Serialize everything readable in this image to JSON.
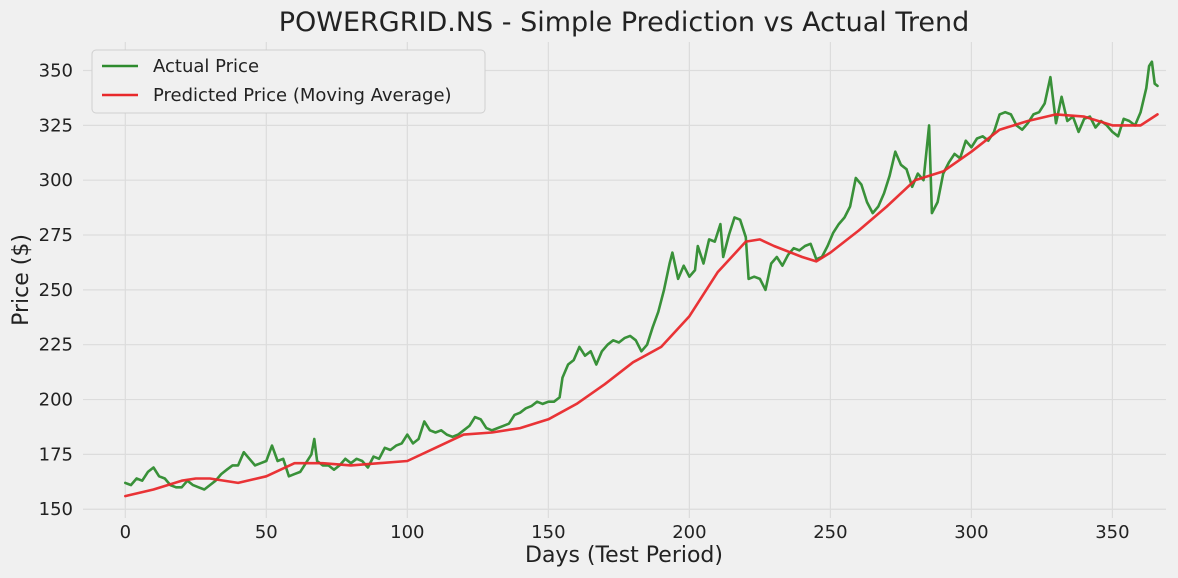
{
  "chart_data": {
    "type": "line",
    "title": "POWERGRID.NS - Simple Prediction vs Actual Trend",
    "xlabel": "Days (Test Period)",
    "ylabel": "Price ($)",
    "xlim": [
      -15,
      369
    ],
    "ylim": [
      146,
      363
    ],
    "xticks": [
      0,
      50,
      100,
      150,
      200,
      250,
      300,
      350
    ],
    "yticks": [
      150,
      175,
      200,
      225,
      250,
      275,
      300,
      325,
      350
    ],
    "grid": true,
    "legend_position": "top-left",
    "series": [
      {
        "name": "Actual Price",
        "color": "#2e8b2e",
        "points": [
          [
            0,
            162
          ],
          [
            2,
            161
          ],
          [
            4,
            164
          ],
          [
            6,
            163
          ],
          [
            8,
            167
          ],
          [
            10,
            169
          ],
          [
            12,
            165
          ],
          [
            14,
            164
          ],
          [
            16,
            161
          ],
          [
            18,
            160
          ],
          [
            20,
            160
          ],
          [
            22,
            163
          ],
          [
            24,
            161
          ],
          [
            26,
            160
          ],
          [
            28,
            159
          ],
          [
            30,
            161
          ],
          [
            32,
            163
          ],
          [
            34,
            166
          ],
          [
            36,
            168
          ],
          [
            38,
            170
          ],
          [
            40,
            170
          ],
          [
            42,
            176
          ],
          [
            44,
            173
          ],
          [
            46,
            170
          ],
          [
            48,
            171
          ],
          [
            50,
            172
          ],
          [
            52,
            179
          ],
          [
            54,
            172
          ],
          [
            56,
            173
          ],
          [
            58,
            165
          ],
          [
            60,
            166
          ],
          [
            62,
            167
          ],
          [
            64,
            171
          ],
          [
            66,
            175
          ],
          [
            67,
            182
          ],
          [
            68,
            172
          ],
          [
            70,
            170
          ],
          [
            72,
            170
          ],
          [
            74,
            168
          ],
          [
            76,
            170
          ],
          [
            78,
            173
          ],
          [
            80,
            171
          ],
          [
            82,
            173
          ],
          [
            84,
            172
          ],
          [
            86,
            169
          ],
          [
            88,
            174
          ],
          [
            90,
            173
          ],
          [
            92,
            178
          ],
          [
            94,
            177
          ],
          [
            96,
            179
          ],
          [
            98,
            180
          ],
          [
            100,
            184
          ],
          [
            102,
            180
          ],
          [
            104,
            182
          ],
          [
            106,
            190
          ],
          [
            108,
            186
          ],
          [
            110,
            185
          ],
          [
            112,
            186
          ],
          [
            114,
            184
          ],
          [
            116,
            183
          ],
          [
            118,
            184
          ],
          [
            120,
            186
          ],
          [
            122,
            188
          ],
          [
            124,
            192
          ],
          [
            126,
            191
          ],
          [
            128,
            187
          ],
          [
            130,
            186
          ],
          [
            132,
            187
          ],
          [
            134,
            188
          ],
          [
            136,
            189
          ],
          [
            138,
            193
          ],
          [
            140,
            194
          ],
          [
            142,
            196
          ],
          [
            144,
            197
          ],
          [
            146,
            199
          ],
          [
            148,
            198
          ],
          [
            150,
            199
          ],
          [
            152,
            199
          ],
          [
            154,
            201
          ],
          [
            155,
            210
          ],
          [
            157,
            216
          ],
          [
            159,
            218
          ],
          [
            161,
            224
          ],
          [
            163,
            220
          ],
          [
            165,
            222
          ],
          [
            167,
            216
          ],
          [
            169,
            222
          ],
          [
            171,
            225
          ],
          [
            173,
            227
          ],
          [
            175,
            226
          ],
          [
            177,
            228
          ],
          [
            179,
            229
          ],
          [
            181,
            227
          ],
          [
            183,
            222
          ],
          [
            185,
            225
          ],
          [
            187,
            233
          ],
          [
            189,
            240
          ],
          [
            191,
            250
          ],
          [
            193,
            262
          ],
          [
            194,
            267
          ],
          [
            196,
            255
          ],
          [
            198,
            261
          ],
          [
            200,
            256
          ],
          [
            202,
            259
          ],
          [
            203,
            270
          ],
          [
            205,
            262
          ],
          [
            207,
            273
          ],
          [
            209,
            272
          ],
          [
            211,
            280
          ],
          [
            212,
            265
          ],
          [
            214,
            275
          ],
          [
            216,
            283
          ],
          [
            218,
            282
          ],
          [
            220,
            274
          ],
          [
            221,
            255
          ],
          [
            223,
            256
          ],
          [
            225,
            255
          ],
          [
            227,
            250
          ],
          [
            229,
            262
          ],
          [
            231,
            265
          ],
          [
            233,
            261
          ],
          [
            235,
            266
          ],
          [
            237,
            269
          ],
          [
            239,
            268
          ],
          [
            241,
            270
          ],
          [
            243,
            271
          ],
          [
            245,
            264
          ],
          [
            247,
            265
          ],
          [
            249,
            270
          ],
          [
            251,
            276
          ],
          [
            253,
            280
          ],
          [
            255,
            283
          ],
          [
            257,
            288
          ],
          [
            259,
            301
          ],
          [
            261,
            298
          ],
          [
            263,
            290
          ],
          [
            265,
            285
          ],
          [
            267,
            288
          ],
          [
            269,
            294
          ],
          [
            271,
            302
          ],
          [
            273,
            313
          ],
          [
            275,
            307
          ],
          [
            277,
            305
          ],
          [
            279,
            297
          ],
          [
            281,
            303
          ],
          [
            283,
            300
          ],
          [
            285,
            325
          ],
          [
            286,
            285
          ],
          [
            288,
            290
          ],
          [
            290,
            303
          ],
          [
            292,
            308
          ],
          [
            294,
            312
          ],
          [
            296,
            310
          ],
          [
            298,
            318
          ],
          [
            300,
            315
          ],
          [
            302,
            319
          ],
          [
            304,
            320
          ],
          [
            306,
            318
          ],
          [
            308,
            322
          ],
          [
            310,
            330
          ],
          [
            312,
            331
          ],
          [
            314,
            330
          ],
          [
            316,
            325
          ],
          [
            318,
            323
          ],
          [
            320,
            326
          ],
          [
            322,
            330
          ],
          [
            324,
            331
          ],
          [
            326,
            335
          ],
          [
            328,
            347
          ],
          [
            330,
            326
          ],
          [
            332,
            338
          ],
          [
            334,
            327
          ],
          [
            336,
            329
          ],
          [
            338,
            322
          ],
          [
            340,
            328
          ],
          [
            342,
            329
          ],
          [
            344,
            324
          ],
          [
            346,
            327
          ],
          [
            348,
            325
          ],
          [
            350,
            322
          ],
          [
            352,
            320
          ],
          [
            354,
            328
          ],
          [
            356,
            327
          ],
          [
            358,
            325
          ],
          [
            360,
            331
          ],
          [
            362,
            342
          ],
          [
            363,
            352
          ],
          [
            364,
            354
          ],
          [
            365,
            344
          ],
          [
            366,
            343
          ]
        ]
      },
      {
        "name": "Predicted Price (Moving Average)",
        "color": "#e8282b",
        "points": [
          [
            0,
            156
          ],
          [
            10,
            159
          ],
          [
            20,
            163
          ],
          [
            25,
            164
          ],
          [
            30,
            164
          ],
          [
            40,
            162
          ],
          [
            50,
            165
          ],
          [
            60,
            171
          ],
          [
            70,
            171
          ],
          [
            80,
            170
          ],
          [
            90,
            171
          ],
          [
            100,
            172
          ],
          [
            110,
            178
          ],
          [
            120,
            184
          ],
          [
            130,
            185
          ],
          [
            140,
            187
          ],
          [
            150,
            191
          ],
          [
            160,
            198
          ],
          [
            170,
            207
          ],
          [
            180,
            217
          ],
          [
            190,
            224
          ],
          [
            200,
            238
          ],
          [
            210,
            258
          ],
          [
            220,
            272
          ],
          [
            225,
            273
          ],
          [
            230,
            270
          ],
          [
            240,
            265
          ],
          [
            245,
            263
          ],
          [
            250,
            267
          ],
          [
            260,
            277
          ],
          [
            270,
            288
          ],
          [
            280,
            300
          ],
          [
            290,
            304
          ],
          [
            300,
            313
          ],
          [
            310,
            323
          ],
          [
            320,
            327
          ],
          [
            330,
            330
          ],
          [
            340,
            329
          ],
          [
            350,
            325
          ],
          [
            360,
            325
          ],
          [
            366,
            330
          ]
        ]
      }
    ]
  }
}
